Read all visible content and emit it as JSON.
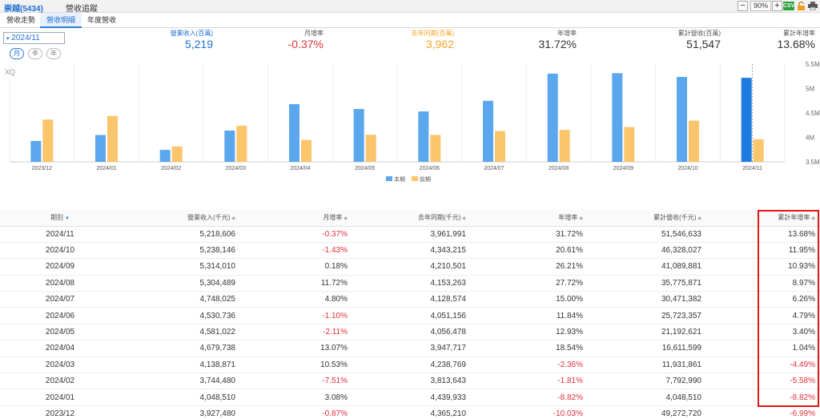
{
  "window": {
    "stock": "崇越(5434)",
    "page_title": "營收追蹤",
    "zoom": "90%",
    "zoom_minus": "−",
    "zoom_plus": "+",
    "csv": "CSV"
  },
  "tabs": [
    {
      "label": "營收走勢",
      "active": false
    },
    {
      "label": "營收明細",
      "active": true
    },
    {
      "label": "年度營收",
      "active": false
    }
  ],
  "period": {
    "selected": "2024/11",
    "buttons": [
      "月",
      "季",
      "年"
    ]
  },
  "summary": [
    {
      "label": "營業收入(百萬)",
      "value": "5,219",
      "label_color": "#1f6fd1",
      "value_color": "#1f6fd1"
    },
    {
      "label": "月增率",
      "value": "-0.37%",
      "label_color": "#555555",
      "value_color": "#e0303a"
    },
    {
      "label": "去年同期(百萬)",
      "value": "3,962",
      "label_color": "#f5a623",
      "value_color": "#f5a623"
    },
    {
      "label": "年增率",
      "value": "31.72%",
      "label_color": "#555555",
      "value_color": "#333333"
    },
    {
      "label": "累計營收(百萬)",
      "value": "51,547",
      "label_color": "#555555",
      "value_color": "#333333"
    },
    {
      "label": "累計年增率",
      "value": "13.68%",
      "label_color": "#555555",
      "value_color": "#333333"
    }
  ],
  "chart_data": {
    "type": "bar",
    "watermark": "XQ",
    "categories": [
      "2023/12",
      "2024/01",
      "2024/02",
      "2024/03",
      "2024/04",
      "2024/05",
      "2024/06",
      "2024/07",
      "2024/08",
      "2024/09",
      "2024/10",
      "2024/11"
    ],
    "series": [
      {
        "name": "本期",
        "color": "#5aa7ee",
        "values": [
          3927,
          4049,
          3744,
          4139,
          4680,
          4581,
          4531,
          4748,
          5304,
          5314,
          5238,
          5219
        ]
      },
      {
        "name": "前期",
        "color": "#fbc56b",
        "values": [
          4365,
          4440,
          3814,
          4239,
          3948,
          4056,
          4051,
          4129,
          4153,
          4211,
          4343,
          3962
        ]
      }
    ],
    "highlight_color": "#1f7be0",
    "ylim": [
      3500,
      5500
    ],
    "yticks": [
      "3.5M",
      "4M",
      "4.5M",
      "5M",
      "5.5M"
    ],
    "ytick_values": [
      3500,
      4000,
      4500,
      5000,
      5500
    ],
    "legend_position": "bottom-center"
  },
  "table": {
    "headers": [
      "期別",
      "營業收入(千元)",
      "月增率",
      "去年同期(千元)",
      "年增率",
      "累計營收(千元)",
      "累計年增率"
    ],
    "rows": [
      [
        "2024/11",
        "5,218,606",
        "-0.37%",
        "3,961,991",
        "31.72%",
        "51,546,633",
        "13.68%"
      ],
      [
        "2024/10",
        "5,238,146",
        "-1.43%",
        "4,343,215",
        "20.61%",
        "46,328,027",
        "11.95%"
      ],
      [
        "2024/09",
        "5,314,010",
        "0.18%",
        "4,210,501",
        "26.21%",
        "41,089,881",
        "10.93%"
      ],
      [
        "2024/08",
        "5,304,489",
        "11.72%",
        "4,153,263",
        "27.72%",
        "35,775,871",
        "8.97%"
      ],
      [
        "2024/07",
        "4,748,025",
        "4.80%",
        "4,128,574",
        "15.00%",
        "30,471,382",
        "6.26%"
      ],
      [
        "2024/06",
        "4,530,736",
        "-1.10%",
        "4,051,156",
        "11.84%",
        "25,723,357",
        "4.79%"
      ],
      [
        "2024/05",
        "4,581,022",
        "-2.11%",
        "4,056,478",
        "12.93%",
        "21,192,621",
        "3.40%"
      ],
      [
        "2024/04",
        "4,679,738",
        "13.07%",
        "3,947,717",
        "18.54%",
        "16,611,599",
        "1.04%"
      ],
      [
        "2024/03",
        "4,138,871",
        "10.53%",
        "4,238,769",
        "-2.36%",
        "11,931,861",
        "-4.49%"
      ],
      [
        "2024/02",
        "3,744,480",
        "-7.51%",
        "3,813,643",
        "-1.81%",
        "7,792,990",
        "-5.58%"
      ],
      [
        "2024/01",
        "4,048,510",
        "3.08%",
        "4,439,933",
        "-8.82%",
        "4,048,510",
        "-8.82%"
      ],
      [
        "2023/12",
        "3,927,480",
        "-0.87%",
        "4,365,210",
        "-10.03%",
        "49,272,720",
        "-6.99%"
      ]
    ],
    "negative_color": "#e0303a"
  }
}
